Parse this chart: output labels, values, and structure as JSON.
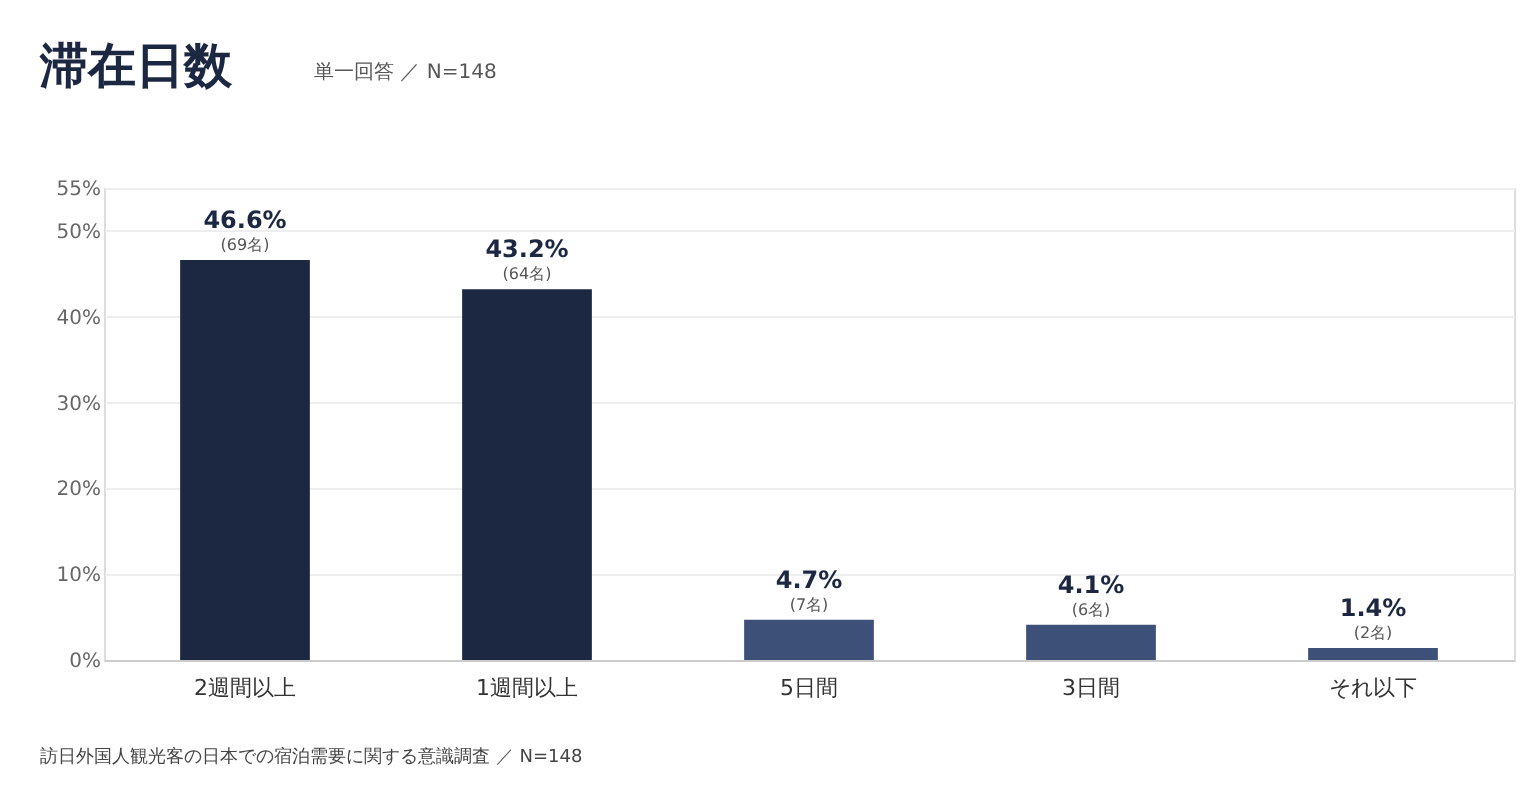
{
  "chart_data": {
    "type": "bar",
    "title": "滞在日数",
    "subtitle": "単一回答 ／ N=148",
    "categories": [
      "2週間以上",
      "1週間以上",
      "5日間",
      "3日間",
      "それ以下"
    ],
    "values": [
      46.6,
      43.2,
      4.7,
      4.1,
      1.4
    ],
    "colors": [
      "#1c2742",
      "#1c2742",
      "#3d5078",
      "#3d5078",
      "#3d5078"
    ],
    "value_labels": [
      "46.6%",
      "43.2%",
      "4.7%",
      "4.1%",
      "1.4%"
    ],
    "annotations": [
      {
        "text": "(69名)",
        "x": "2週間以上",
        "y": 46.6
      },
      {
        "text": "(64名)",
        "x": "1週間以上",
        "y": 43.2
      },
      {
        "text": "(7名)",
        "x": "5日間",
        "y": 4.7
      },
      {
        "text": "(6名)",
        "x": "3日間",
        "y": 4.1
      },
      {
        "text": "(2名)",
        "x": "それ以下",
        "y": 1.4
      },
      "訪日外国人観光客の日本での宿泊需要に関する意識調査 ／ N=148"
    ],
    "ylim": [
      0,
      55
    ],
    "yticks": [
      {
        "value": 0,
        "label": "0%"
      },
      {
        "value": 10,
        "label": "10%"
      },
      {
        "value": 20,
        "label": "20%"
      },
      {
        "value": 30,
        "label": "30%"
      },
      {
        "value": 40,
        "label": "40%"
      },
      {
        "value": 50,
        "label": "50%"
      },
      {
        "value": 55,
        "label": "55%"
      }
    ],
    "grid": "y"
  }
}
